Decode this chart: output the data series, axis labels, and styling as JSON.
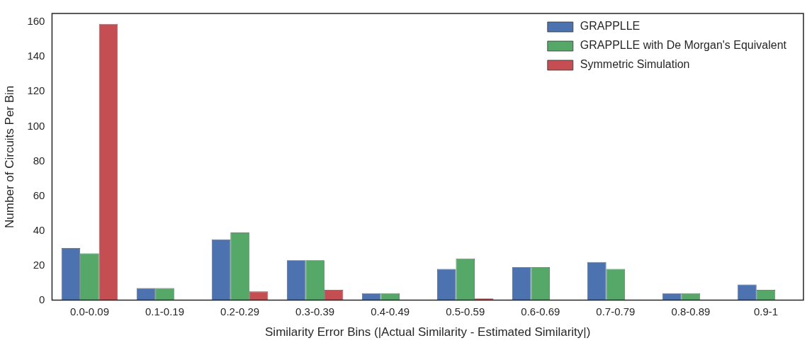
{
  "chart_data": {
    "type": "bar",
    "xlabel": "Similarity Error Bins (|Actual Similarity - Estimated Similarity|)",
    "ylabel": "Number of Circuits Per Bin",
    "categories": [
      "0.0-0.09",
      "0.1-0.19",
      "0.2-0.29",
      "0.3-0.39",
      "0.4-0.49",
      "0.5-0.59",
      "0.6-0.69",
      "0.7-0.79",
      "0.8-0.89",
      "0.9-1"
    ],
    "series": [
      {
        "name": "GRAPPLLE",
        "color": "#4c72b0",
        "values": [
          30,
          7,
          35,
          23,
          4,
          18,
          19,
          22,
          4,
          9
        ]
      },
      {
        "name": "GRAPPLLE with De Morgan's Equivalent",
        "color": "#55a868",
        "values": [
          27,
          7,
          39,
          23,
          4,
          24,
          19,
          18,
          4,
          6
        ]
      },
      {
        "name": "Symmetric Simulation",
        "color": "#c44e52",
        "values": [
          159,
          0,
          5,
          6,
          0,
          1,
          0,
          0,
          0,
          0
        ]
      }
    ],
    "ylim": [
      0,
      165
    ],
    "yticks": [
      0,
      20,
      40,
      60,
      80,
      100,
      120,
      140,
      160
    ],
    "grid": false,
    "legend": "top right"
  }
}
